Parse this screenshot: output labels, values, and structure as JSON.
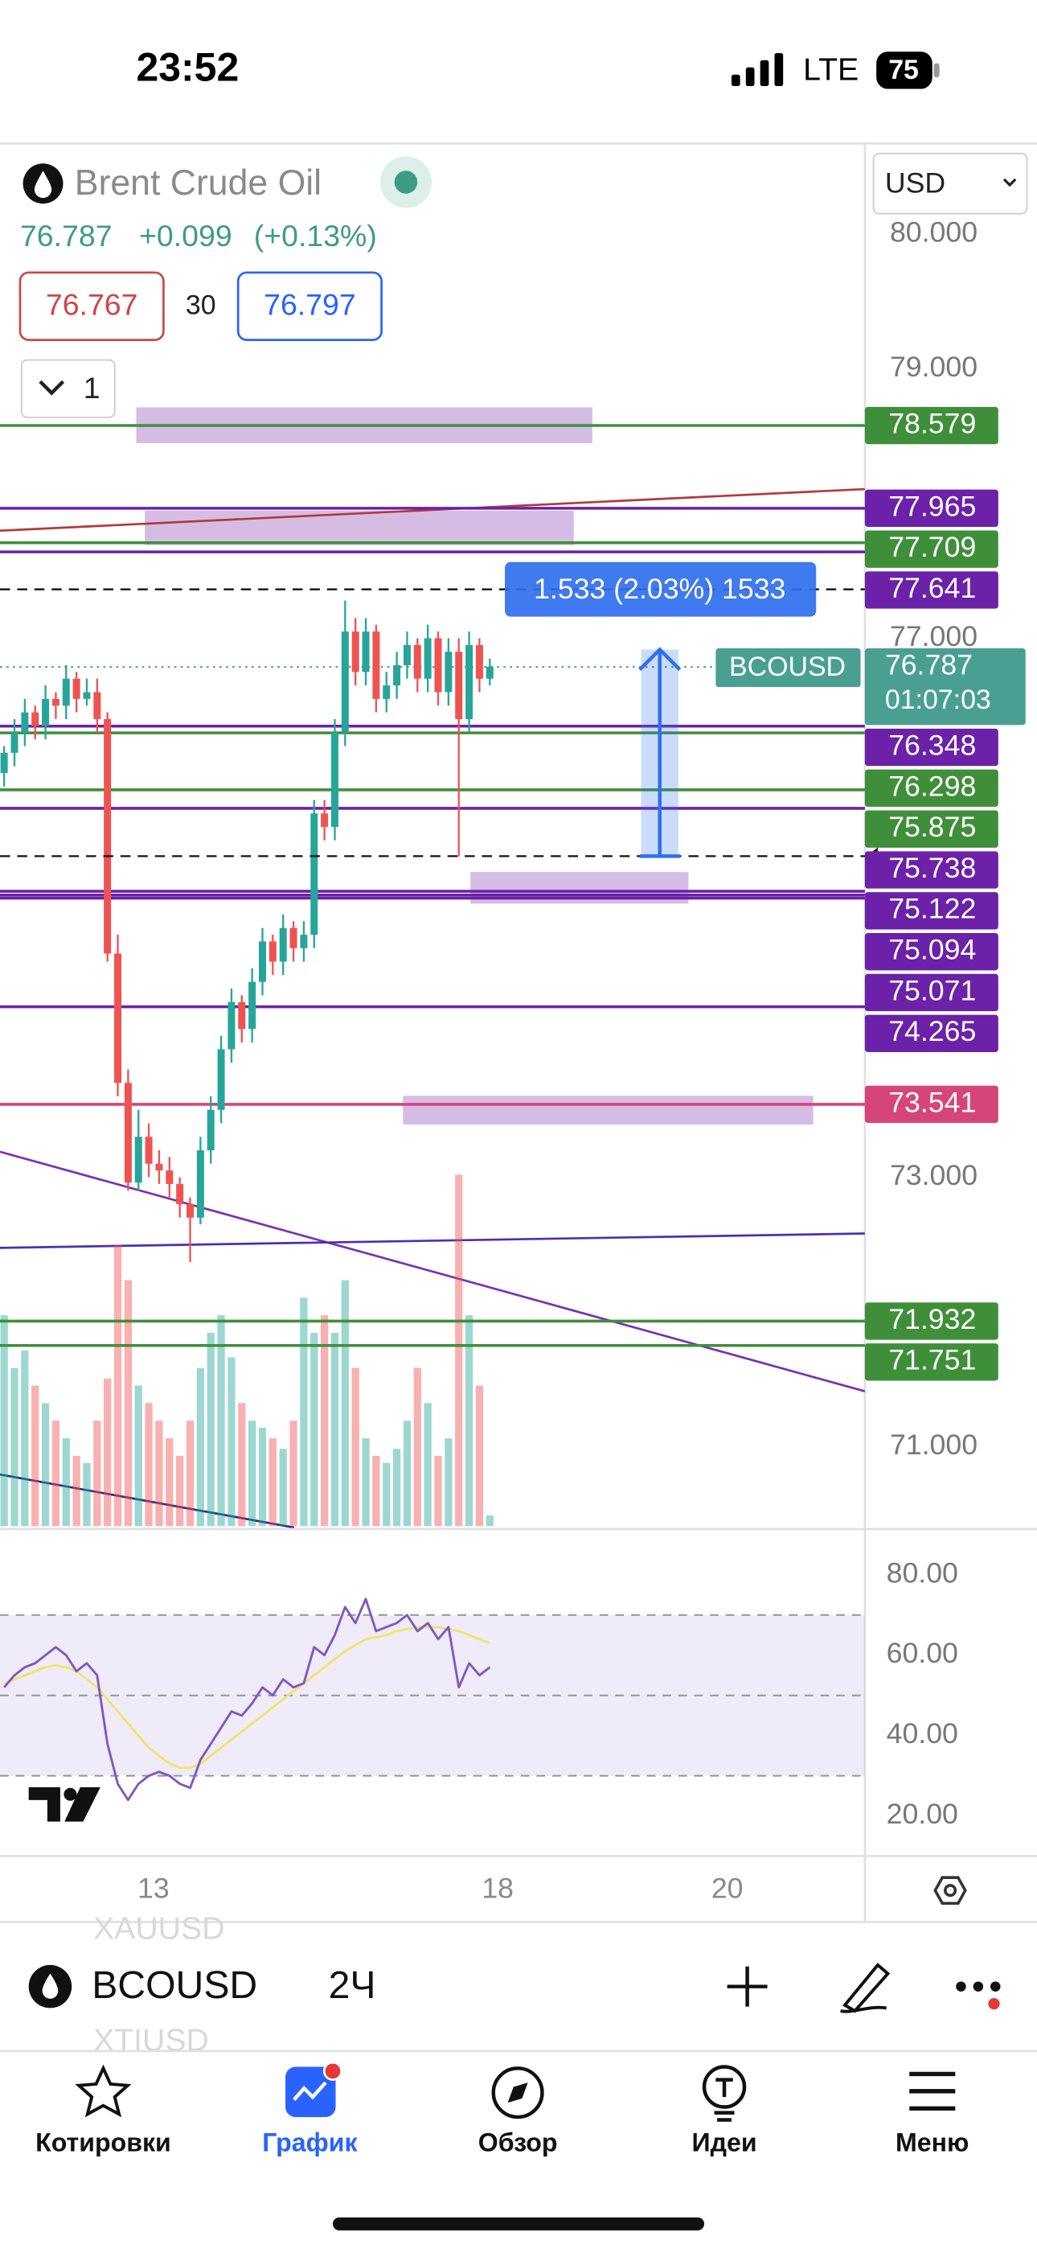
{
  "status_bar": {
    "time": "23:52",
    "network": "LTE",
    "battery": "75"
  },
  "header": {
    "symbol_name": "Brent Crude Oil",
    "price": "76.787",
    "change": "+0.099",
    "change_pct": "(+0.13%)",
    "bid": "76.767",
    "spread": "30",
    "ask": "76.797",
    "interval_toggle": "1",
    "currency": "USD"
  },
  "chart_data": [
    {
      "type": "candlestick",
      "up_color": "#26a69a",
      "down_color": "#ef5350",
      "open": [
        76.0,
        76.15,
        76.3,
        76.45,
        76.35,
        76.55,
        76.5,
        76.7,
        76.55,
        76.6,
        76.4,
        74.66,
        73.7,
        72.96,
        73.3,
        73.1,
        73.05,
        72.95,
        72.8,
        72.7,
        73.2,
        73.5,
        73.95,
        74.3,
        74.1,
        74.45,
        74.75,
        74.6,
        74.85,
        74.7,
        74.8,
        75.7,
        75.6,
        76.3,
        77.05,
        76.75,
        77.05,
        76.55,
        76.65,
        76.8,
        76.95,
        76.7,
        77.0,
        76.6,
        76.9,
        76.4,
        76.95,
        76.7
      ],
      "high": [
        76.2,
        76.4,
        76.55,
        76.5,
        76.65,
        76.6,
        76.8,
        76.75,
        76.7,
        76.7,
        76.45,
        74.8,
        73.8,
        73.5,
        73.4,
        73.2,
        73.15,
        73.0,
        72.85,
        73.3,
        73.6,
        74.05,
        74.4,
        74.35,
        74.55,
        74.85,
        74.8,
        74.95,
        74.9,
        74.9,
        75.8,
        75.8,
        76.4,
        77.28,
        77.15,
        77.15,
        77.1,
        76.75,
        76.9,
        77.05,
        77.0,
        77.1,
        77.05,
        77.0,
        77.0,
        77.05,
        77.0,
        76.85
      ],
      "low": [
        75.9,
        76.05,
        76.2,
        76.25,
        76.25,
        76.4,
        76.4,
        76.45,
        76.5,
        76.3,
        74.6,
        73.6,
        72.9,
        72.9,
        73.0,
        72.95,
        72.85,
        72.7,
        72.37,
        72.65,
        73.1,
        73.4,
        73.85,
        74.0,
        74.0,
        74.35,
        74.5,
        74.5,
        74.6,
        74.6,
        74.7,
        75.5,
        75.5,
        76.2,
        76.65,
        76.65,
        76.45,
        76.45,
        76.55,
        76.7,
        76.6,
        76.6,
        76.5,
        76.5,
        75.38,
        76.3,
        76.6,
        76.65
      ],
      "close": [
        76.15,
        76.3,
        76.45,
        76.35,
        76.55,
        76.5,
        76.7,
        76.55,
        76.6,
        76.4,
        74.66,
        73.7,
        72.96,
        73.3,
        73.1,
        73.05,
        72.95,
        72.8,
        72.7,
        73.2,
        73.5,
        73.95,
        74.3,
        74.1,
        74.45,
        74.75,
        74.6,
        74.85,
        74.7,
        74.8,
        75.7,
        75.6,
        76.3,
        77.05,
        76.75,
        77.05,
        76.55,
        76.65,
        76.8,
        76.95,
        76.7,
        77.0,
        76.6,
        76.9,
        76.4,
        76.95,
        76.7,
        76.79
      ],
      "volume": [
        60,
        45,
        50,
        40,
        35,
        30,
        25,
        20,
        18,
        30,
        42,
        80,
        70,
        40,
        35,
        30,
        25,
        20,
        30,
        45,
        55,
        60,
        48,
        35,
        30,
        28,
        25,
        22,
        30,
        65,
        55,
        60,
        55,
        70,
        45,
        25,
        20,
        18,
        22,
        30,
        45,
        35,
        20,
        25,
        100,
        60,
        40,
        3
      ],
      "vlim": [
        0,
        100
      ],
      "ylim": [
        70.4,
        80.3
      ],
      "yticks": [
        {
          "value": 80,
          "label": "80.000"
        },
        {
          "value": 79,
          "label": "79.000"
        },
        {
          "value": 77,
          "label": "77.000"
        },
        {
          "value": 73,
          "label": "73.000"
        },
        {
          "value": 71,
          "label": "71.000"
        }
      ],
      "xlim": [
        -0.4,
        83.3
      ],
      "xticks": [
        {
          "value": 14.45,
          "label": "13"
        },
        {
          "value": 47.77,
          "label": "18"
        },
        {
          "value": 69.98,
          "label": "20"
        }
      ],
      "levels": [
        {
          "value": 78.579,
          "color": "#3f8f3a"
        },
        {
          "value": 77.965,
          "color": "#6b21a8"
        },
        {
          "value": 77.709,
          "color": "#3f8f3a"
        },
        {
          "value": 77.641,
          "color": "#6b21a8"
        },
        {
          "value": 76.348,
          "color": "#6b21a8"
        },
        {
          "value": 76.298,
          "color": "#3f8f3a"
        },
        {
          "value": 75.875,
          "color": "#3f8f3a"
        },
        {
          "value": 75.738,
          "color": "#6b21a8"
        },
        {
          "value": 75.122,
          "color": "#6b21a8"
        },
        {
          "value": 75.094,
          "color": "#6b21a8"
        },
        {
          "value": 75.071,
          "color": "#6b21a8"
        },
        {
          "value": 74.265,
          "color": "#6b21a8"
        },
        {
          "value": 73.541,
          "color": "#d6457a"
        },
        {
          "value": 71.932,
          "color": "#3f8f3a"
        },
        {
          "value": 71.751,
          "color": "#3f8f3a"
        }
      ],
      "current": {
        "symbol": "BCOUSD",
        "value": 76.787,
        "countdown": "01:07:03",
        "color": "#4a9f93"
      },
      "measure": {
        "label": "1.533 (2.03%) 1533",
        "from": 75.383,
        "to": 76.916,
        "color": "#2f6fed"
      }
    },
    {
      "type": "line",
      "xlim": [
        -0.4,
        83.3
      ],
      "ylim": [
        10.4,
        90.7
      ],
      "yticks": [
        {
          "value": 80,
          "label": "80.00"
        },
        {
          "value": 60,
          "label": "60.00"
        },
        {
          "value": 40,
          "label": "40.00"
        },
        {
          "value": 20,
          "label": "20.00"
        }
      ],
      "band": [
        30,
        70
      ],
      "guides": [
        70,
        50,
        30
      ],
      "series": [
        {
          "color": "#7e57c2",
          "values": [
            52,
            55,
            57,
            58,
            60,
            62,
            60,
            56,
            58,
            55,
            38,
            28,
            24,
            28,
            30,
            31,
            30,
            28,
            27,
            34,
            38,
            42,
            46,
            45,
            48,
            52,
            50,
            54,
            52,
            53,
            62,
            60,
            65,
            72,
            68,
            74,
            66,
            67,
            68,
            70,
            66,
            68,
            64,
            67,
            52,
            58,
            55,
            57
          ]
        },
        {
          "color": "#f3e36a",
          "values": [
            53,
            54,
            55,
            56,
            57,
            57.5,
            57,
            56,
            54,
            52,
            49,
            46,
            43,
            40,
            37,
            35,
            33,
            32,
            32,
            33,
            35,
            37,
            39,
            41,
            43,
            45,
            47,
            49,
            51,
            53,
            55,
            57,
            59,
            61,
            62.5,
            64,
            64.5,
            65,
            66,
            66.5,
            67,
            67,
            67,
            66.5,
            66,
            65,
            64,
            63
          ]
        }
      ]
    }
  ],
  "toolbar": {
    "ghost_above": "XAUUSD",
    "ghost_below": "XTIUSD",
    "symbol": "BCOUSD",
    "interval": "2Ч"
  },
  "tab_bar": {
    "tabs": [
      "Котировки",
      "График",
      "Обзор",
      "Идеи",
      "Меню"
    ]
  }
}
